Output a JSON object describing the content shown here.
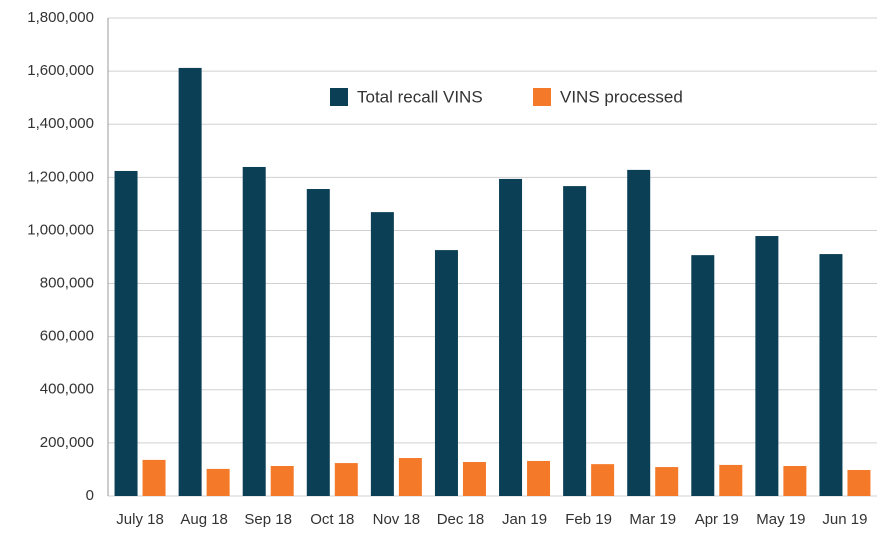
{
  "chart_data": {
    "type": "bar",
    "categories": [
      "July 18",
      "Aug 18",
      "Sep 18",
      "Oct 18",
      "Nov 18",
      "Dec 18",
      "Jan 19",
      "Feb 19",
      "Mar 19",
      "Apr 19",
      "May 19",
      "Jun 19"
    ],
    "series": [
      {
        "name": "Total recall VINS",
        "color": "#0b3f56",
        "values": [
          1224000,
          1612000,
          1239000,
          1156000,
          1069000,
          926000,
          1194000,
          1167000,
          1228000,
          907000,
          979000,
          911000
        ]
      },
      {
        "name": "VINS processed",
        "color": "#f47a2a",
        "values": [
          136000,
          102000,
          113000,
          124000,
          143000,
          128000,
          132000,
          120000,
          109000,
          117000,
          113000,
          98000
        ]
      }
    ],
    "ylim": [
      0,
      1800000
    ],
    "yticks": [
      0,
      {
        "value": 200000,
        "label": "200,000"
      },
      {
        "value": 400000,
        "label": "400,000"
      },
      {
        "value": 600000,
        "label": "600,000"
      },
      {
        "value": 800000,
        "label": "800,000"
      },
      {
        "value": 1000000,
        "label": "1,000,000"
      },
      {
        "value": 1200000,
        "label": "1,200,000"
      },
      {
        "value": 1400000,
        "label": "1,400,000"
      },
      {
        "value": 1600000,
        "label": "1,600,000"
      },
      {
        "value": 1800000,
        "label": "1,800,000"
      }
    ],
    "grid": true,
    "legend": "top"
  }
}
